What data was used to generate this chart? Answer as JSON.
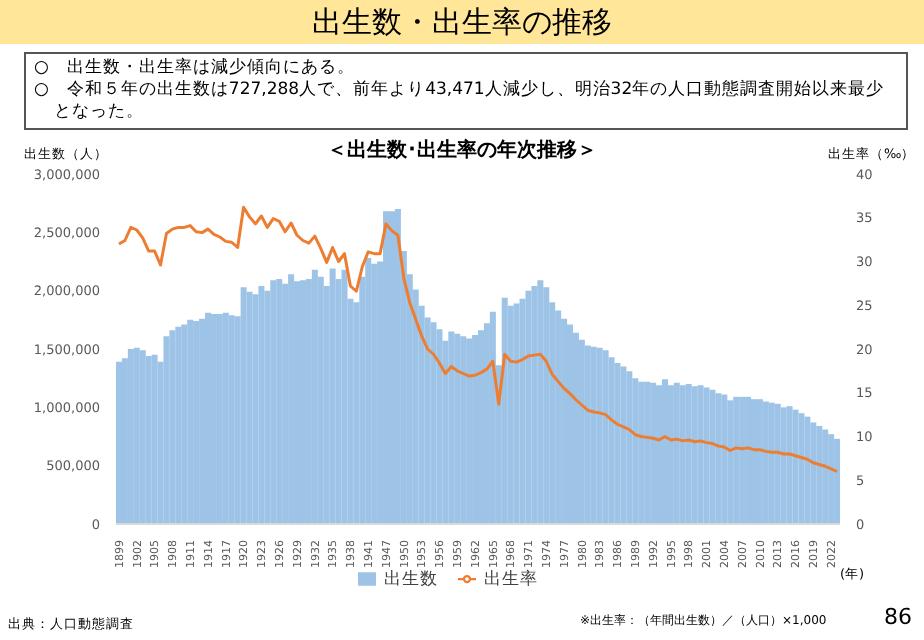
{
  "chart_data": {
    "type": "bar",
    "title": "出生数・出生率の推移",
    "subtitle": "＜出生数･出生率の年次推移＞",
    "xlabel": "(年)",
    "ylabel": "出生数（人）",
    "y2label": "出生率（‰）",
    "annotations": [
      "○　出生数・出生率は減少傾向にある。",
      "○　令和５年の出生数は727,288人で、前年より43,471人減少し、明治32年の人口動態調査開始以来最少となった。",
      "※出生率：（年間出生数）／（人口）×1,000",
      "出典：人口動態調査",
      "86"
    ],
    "categories": [
      "1899",
      null,
      null,
      "1902",
      null,
      null,
      "1905",
      null,
      null,
      "1908",
      null,
      null,
      "1911",
      null,
      null,
      "1914",
      null,
      null,
      "1917",
      null,
      null,
      "1920",
      null,
      null,
      "1923",
      null,
      null,
      "1926",
      null,
      null,
      "1929",
      null,
      null,
      "1932",
      null,
      null,
      "1935",
      null,
      null,
      "1938",
      null,
      null,
      "1941",
      null,
      null,
      "1947",
      null,
      null,
      "1950",
      null,
      null,
      "1953",
      null,
      null,
      "1956",
      null,
      null,
      "1959",
      null,
      null,
      "1962",
      null,
      null,
      "1965",
      null,
      null,
      "1968",
      null,
      null,
      "1971",
      null,
      null,
      "1974",
      null,
      null,
      "1977",
      null,
      null,
      "1980",
      null,
      null,
      "1983",
      null,
      null,
      "1986",
      null,
      null,
      "1989",
      null,
      null,
      "1992",
      null,
      null,
      "1995",
      null,
      null,
      "1998",
      null,
      null,
      "2001",
      null,
      null,
      "2004",
      null,
      null,
      "2007",
      null,
      null,
      "2010",
      null,
      null,
      "2013",
      null,
      null,
      "2016",
      null,
      null,
      "2019",
      null,
      null,
      "2022",
      null
    ],
    "series": [
      {
        "name": "出生数",
        "color": "#9dc3e6",
        "values": [
          1390000,
          1420000,
          1500000,
          1510000,
          1490000,
          1440000,
          1450000,
          1390000,
          1610000,
          1660000,
          1690000,
          1710000,
          1750000,
          1740000,
          1760000,
          1810000,
          1800000,
          1800000,
          1810000,
          1790000,
          1780000,
          2030000,
          1990000,
          1970000,
          2040000,
          2000000,
          2090000,
          2100000,
          2060000,
          2140000,
          2080000,
          2090000,
          2100000,
          2180000,
          2120000,
          2040000,
          2190000,
          2100000,
          2180000,
          1930000,
          1900000,
          2120000,
          2280000,
          2230000,
          2250000,
          2680000,
          2680000,
          2700000,
          2340000,
          2140000,
          2010000,
          1870000,
          1770000,
          1730000,
          1670000,
          1570000,
          1650000,
          1630000,
          1610000,
          1590000,
          1620000,
          1660000,
          1720000,
          1820000,
          1360000,
          1940000,
          1870000,
          1890000,
          1930000,
          2000000,
          2040000,
          2090000,
          2030000,
          1900000,
          1830000,
          1760000,
          1710000,
          1640000,
          1580000,
          1530000,
          1520000,
          1510000,
          1490000,
          1430000,
          1380000,
          1350000,
          1310000,
          1250000,
          1220000,
          1220000,
          1210000,
          1190000,
          1240000,
          1190000,
          1210000,
          1190000,
          1200000,
          1180000,
          1190000,
          1170000,
          1150000,
          1120000,
          1110000,
          1060000,
          1090000,
          1090000,
          1090000,
          1070000,
          1070000,
          1050000,
          1040000,
          1030000,
          1000000,
          1010000,
          980000,
          950000,
          920000,
          870000,
          840000,
          810000,
          770000,
          730000
        ]
      },
      {
        "name": "出生率",
        "type": "line",
        "axis": "y2",
        "color": "#ed7d31",
        "values": [
          32.0,
          32.4,
          33.9,
          33.6,
          32.7,
          31.2,
          31.2,
          29.6,
          33.2,
          33.7,
          33.9,
          33.9,
          34.1,
          33.4,
          33.3,
          33.7,
          33.1,
          32.8,
          32.3,
          32.2,
          31.6,
          36.2,
          35.1,
          34.3,
          35.2,
          33.9,
          34.9,
          34.6,
          33.4,
          34.4,
          33.0,
          32.4,
          32.1,
          32.9,
          31.5,
          29.9,
          31.6,
          30.0,
          30.9,
          27.2,
          26.6,
          29.4,
          31.1,
          30.9,
          30.9,
          34.3,
          33.5,
          33.0,
          28.1,
          25.3,
          23.4,
          21.5,
          20.0,
          19.4,
          18.4,
          17.2,
          18.0,
          17.5,
          17.2,
          16.9,
          17.0,
          17.3,
          17.7,
          18.6,
          13.7,
          19.4,
          18.6,
          18.5,
          18.8,
          19.2,
          19.3,
          19.4,
          18.6,
          17.1,
          16.3,
          15.5,
          14.9,
          14.2,
          13.6,
          13.0,
          12.8,
          12.7,
          12.5,
          11.9,
          11.4,
          11.1,
          10.8,
          10.2,
          10.0,
          9.9,
          9.8,
          9.6,
          10.0,
          9.6,
          9.7,
          9.5,
          9.6,
          9.4,
          9.5,
          9.3,
          9.2,
          8.9,
          8.8,
          8.4,
          8.7,
          8.6,
          8.7,
          8.5,
          8.5,
          8.3,
          8.2,
          8.2,
          8.0,
          8.0,
          7.8,
          7.6,
          7.4,
          7.0,
          6.8,
          6.6,
          6.3,
          6.0
        ]
      }
    ],
    "ylim": [
      0,
      3000000
    ],
    "yticks": [
      {
        "value": 0,
        "label": "0"
      },
      {
        "value": 500000,
        "label": "500,000"
      },
      {
        "value": 1000000,
        "label": "1,000,000"
      },
      {
        "value": 1500000,
        "label": "1,500,000"
      },
      {
        "value": 2000000,
        "label": "2,000,000"
      },
      {
        "value": 2500000,
        "label": "2,500,000"
      },
      {
        "value": 3000000,
        "label": "3,000,000"
      }
    ],
    "y2lim": [
      0,
      40
    ],
    "y2ticks": [
      0,
      5,
      10,
      15,
      20,
      25,
      30,
      35,
      40
    ],
    "legend": "bottom",
    "grid": false,
    "marker": "none",
    "line_style": "solid"
  }
}
